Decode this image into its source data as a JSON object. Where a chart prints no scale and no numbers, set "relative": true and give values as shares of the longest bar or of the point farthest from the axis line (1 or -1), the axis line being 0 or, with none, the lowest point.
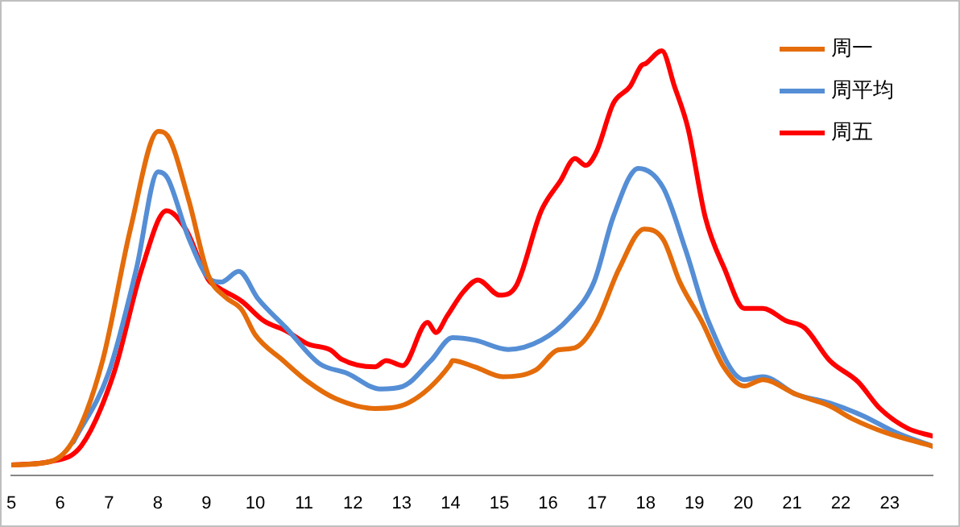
{
  "chart_data": {
    "type": "line",
    "relative": true,
    "legend": "top right",
    "marker": "none",
    "line_style": "solid",
    "grid": false,
    "xlim": [
      5,
      23.88
    ],
    "xticks": [
      5,
      6,
      7,
      8,
      9,
      10,
      11,
      12,
      13,
      14,
      15,
      16,
      17,
      18,
      19,
      20,
      21,
      22,
      23
    ],
    "series": [
      {
        "name": "周一",
        "color": "#e46c0a",
        "x": [
          5,
          5.8,
          6.3,
          6.87,
          7.44,
          8.01,
          8.2,
          8.63,
          9.04,
          9.38,
          9.72,
          10.0,
          10.57,
          11.08,
          11.65,
          12.45,
          13.13,
          13.99,
          14.04,
          14.5,
          15.07,
          15.75,
          16.2,
          16.55,
          16.99,
          17.45,
          17.97,
          18.36,
          18.7,
          19.16,
          19.6,
          20.02,
          20.4,
          21.09,
          21.77,
          22.23,
          22.92,
          23.88
        ],
        "values": [
          0.024,
          0.032,
          0.088,
          0.27,
          0.58,
          0.81,
          0.8,
          0.65,
          0.47,
          0.42,
          0.39,
          0.33,
          0.27,
          0.22,
          0.18,
          0.157,
          0.17,
          0.26,
          0.27,
          0.255,
          0.232,
          0.248,
          0.295,
          0.3,
          0.36,
          0.485,
          0.58,
          0.555,
          0.455,
          0.36,
          0.255,
          0.21,
          0.225,
          0.19,
          0.163,
          0.133,
          0.1,
          0.068
        ]
      },
      {
        "name": "周平均",
        "color": "#558ed5",
        "x": [
          6.27,
          6.99,
          7.56,
          8.01,
          8.2,
          8.63,
          9.09,
          9.3,
          9.66,
          10.06,
          10.63,
          11.31,
          11.88,
          12.56,
          13.02,
          13.6,
          14.04,
          14.5,
          15.18,
          15.86,
          16.43,
          16.94,
          17.34,
          17.85,
          18.36,
          18.82,
          19.28,
          20.02,
          20.4,
          21.09,
          21.77,
          22.45,
          23.14,
          23.88
        ],
        "values": [
          0.078,
          0.24,
          0.485,
          0.715,
          0.7,
          0.56,
          0.46,
          0.455,
          0.48,
          0.415,
          0.347,
          0.263,
          0.24,
          0.203,
          0.209,
          0.27,
          0.324,
          0.318,
          0.296,
          0.318,
          0.37,
          0.455,
          0.61,
          0.723,
          0.677,
          0.53,
          0.364,
          0.225,
          0.232,
          0.19,
          0.17,
          0.14,
          0.1,
          0.068
        ]
      },
      {
        "name": "周五",
        "color": "#ff0000",
        "x": [
          5,
          5.8,
          6.44,
          7.1,
          7.67,
          8.18,
          8.57,
          9.04,
          9.27,
          9.72,
          10.17,
          10.63,
          11.08,
          11.54,
          11.77,
          12.45,
          12.68,
          13.02,
          13.53,
          13.7,
          13.93,
          14.27,
          14.56,
          15.01,
          15.35,
          15.86,
          16.25,
          16.55,
          16.77,
          16.99,
          17.34,
          17.68,
          17.91,
          18.0,
          18.33,
          18.59,
          18.87,
          19.22,
          19.62,
          20.02,
          20.4,
          20.87,
          21.26,
          21.77,
          22.35,
          22.8,
          23.37,
          23.88
        ],
        "values": [
          0.024,
          0.032,
          0.07,
          0.24,
          0.485,
          0.623,
          0.58,
          0.46,
          0.44,
          0.41,
          0.364,
          0.34,
          0.309,
          0.295,
          0.273,
          0.255,
          0.27,
          0.258,
          0.36,
          0.336,
          0.375,
          0.433,
          0.46,
          0.424,
          0.447,
          0.623,
          0.693,
          0.746,
          0.73,
          0.762,
          0.877,
          0.916,
          0.965,
          0.97,
          1.0,
          0.916,
          0.816,
          0.608,
          0.485,
          0.393,
          0.393,
          0.364,
          0.347,
          0.27,
          0.22,
          0.157,
          0.11,
          0.092
        ]
      }
    ]
  }
}
